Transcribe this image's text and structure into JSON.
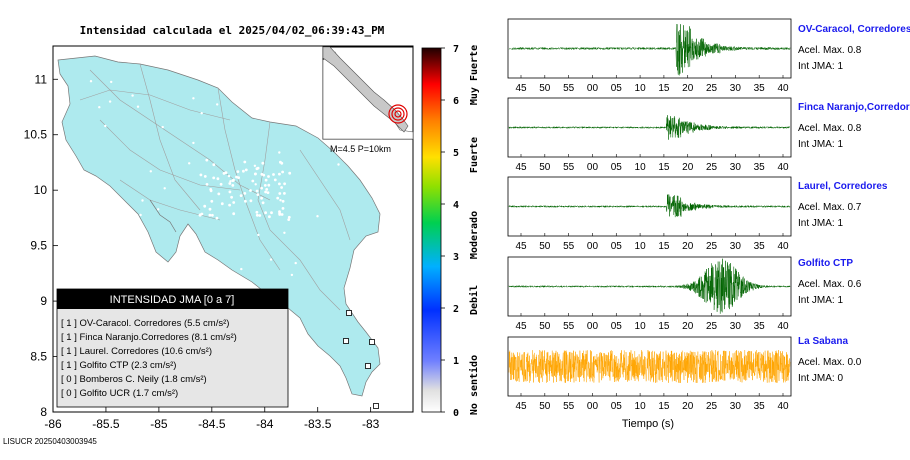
{
  "header": {
    "title": "Intensidad calculada el 2025/04/02_06:39:43_PM"
  },
  "map": {
    "x_ticks": [
      "-86",
      "-85.5",
      "-85",
      "-84.5",
      "-84",
      "-83.5",
      "-83"
    ],
    "y_ticks": [
      "8",
      "8.5",
      "9",
      "9.5",
      "10",
      "10.5",
      "11"
    ],
    "land_color": "#aeeaee",
    "inset_label": "M=4.5 P=10km"
  },
  "legend": {
    "title": "INTENSIDAD JMA [0 a 7]",
    "items": [
      {
        "text": "[ 1 ]  OV-Caracol. Corredores (5.5 cm/s²)"
      },
      {
        "text": "[ 1 ]  Finca Naranjo.Corredores (8.1 cm/s²)"
      },
      {
        "text": "[ 1 ]  Laurel. Corredores (10.6 cm/s²)"
      },
      {
        "text": "[ 1 ]  Golfito CTP (2.3 cm/s²)"
      },
      {
        "text": "[ 0 ]  Bomberos C. Neily (1.8 cm/s²)"
      },
      {
        "text": "[ 0 ]  Golfito UCR (1.7 cm/s²)"
      }
    ]
  },
  "colorbar": {
    "ticks": [
      "0",
      "1",
      "2",
      "3",
      "4",
      "5",
      "6",
      "7"
    ],
    "labels": [
      "No sentido",
      "Debil",
      "Moderado",
      "Fuerte",
      "Muy Fuerte"
    ]
  },
  "chart_data": {
    "type": "line",
    "x_tick_labels": [
      "45",
      "50",
      "55",
      "00",
      "05",
      "10",
      "15",
      "20",
      "25",
      "30",
      "35",
      "40"
    ],
    "xlabel": "Tiempo (s)",
    "series": [
      {
        "name": "OV-Caracol, Corredores",
        "acel_label": "Acel. Max. 0.8",
        "int_label": "Int JMA: 1",
        "color": "#006400",
        "onset_tick": 6.5,
        "peak": 0.8,
        "env": [
          0.04,
          0.04,
          0.04,
          0.04,
          0.04,
          0.04,
          0.04,
          1.0,
          0.55,
          0.3,
          0.12,
          0.06,
          0.04
        ]
      },
      {
        "name": "Finca Naranjo,Corredores",
        "acel_label": "Acel. Max. 0.8",
        "int_label": "Int JMA: 1",
        "color": "#006400",
        "onset_tick": 6.1,
        "peak": 0.8,
        "env": [
          0.03,
          0.03,
          0.03,
          0.03,
          0.03,
          0.03,
          0.03,
          0.45,
          0.3,
          0.15,
          0.06,
          0.04,
          0.03
        ]
      },
      {
        "name": "Laurel, Corredores",
        "acel_label": "Acel. Max. 0.7",
        "int_label": "Int JMA: 1",
        "color": "#006400",
        "onset_tick": 6.1,
        "peak": 0.7,
        "env": [
          0.03,
          0.03,
          0.03,
          0.03,
          0.03,
          0.03,
          0.03,
          0.45,
          0.2,
          0.1,
          0.05,
          0.03,
          0.03
        ]
      },
      {
        "name": "Golfito CTP",
        "acel_label": "Acel. Max. 0.6",
        "int_label": "Int JMA: 1",
        "color": "#006400",
        "onset_tick": 7.8,
        "peak": 0.6,
        "env": [
          0.03,
          0.03,
          0.03,
          0.03,
          0.03,
          0.03,
          0.03,
          0.03,
          0.55,
          1.0,
          0.35,
          0.08,
          0.03
        ]
      },
      {
        "name": "La Sabana",
        "acel_label": "Acel. Max. 0.0",
        "int_label": "Int JMA: 0",
        "color": "#ffa500",
        "onset_tick": 0,
        "peak": 0.0,
        "env": [
          0.6,
          0.6,
          0.6,
          0.6,
          0.6,
          0.6,
          0.6,
          0.6,
          0.6,
          0.6,
          0.6,
          0.6,
          0.6
        ]
      }
    ]
  },
  "footer": {
    "id": "LISUCR 20250403003945"
  }
}
